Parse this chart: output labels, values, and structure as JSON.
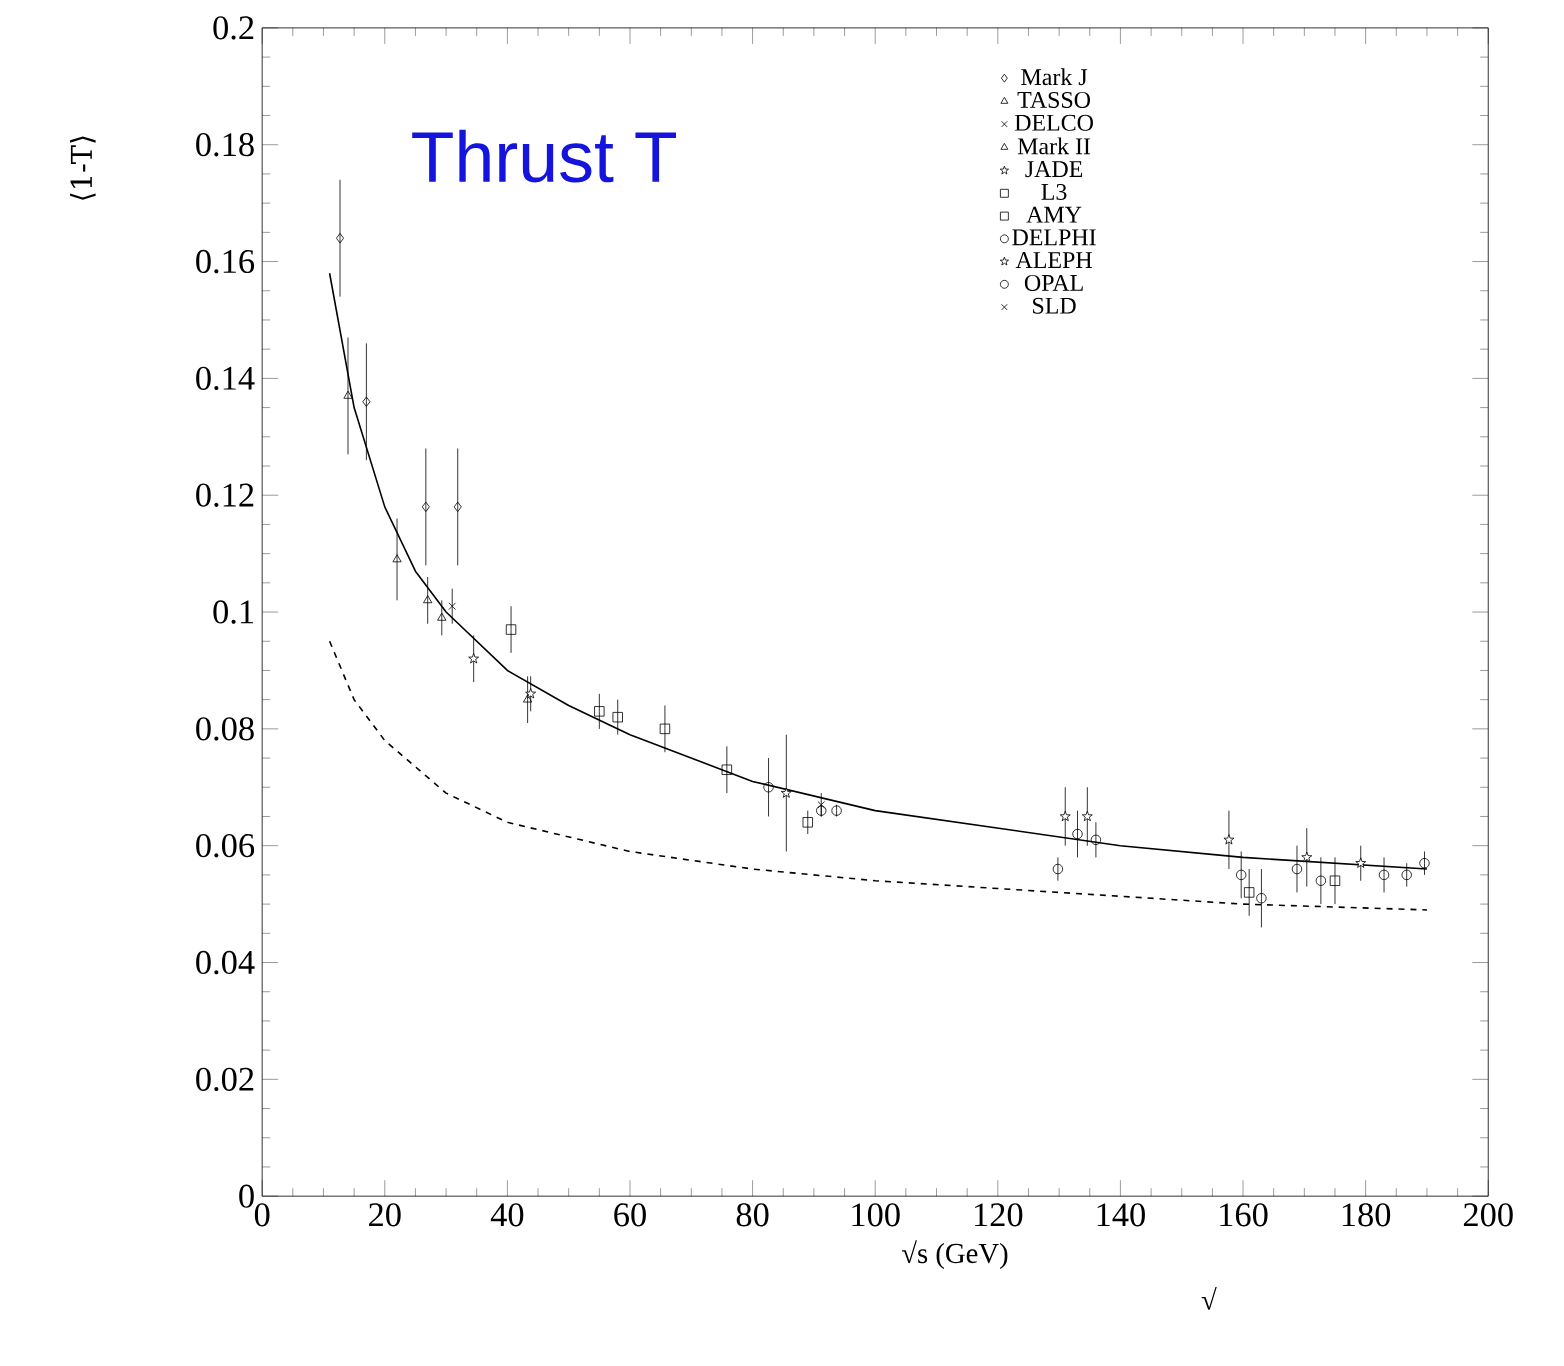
{
  "chart_data": {
    "type": "scatter",
    "title": "Thrust T",
    "xlabel": "√s (GeV)",
    "ylabel": "⟨1-T⟩",
    "annotations": [
      "√"
    ],
    "xlim": [
      0,
      200
    ],
    "ylim": [
      0,
      0.2
    ],
    "xticks": [
      0,
      20,
      40,
      60,
      80,
      100,
      120,
      140,
      160,
      180,
      200
    ],
    "yticks": [
      0,
      0.02,
      0.04,
      0.06,
      0.08,
      0.1,
      0.12,
      0.14,
      0.16,
      0.18,
      0.2
    ],
    "legend": "top right",
    "series": [
      {
        "name": "Mark J",
        "color": "#000000",
        "marker": "diamond",
        "x": [
          12.7,
          17,
          26.7,
          31.9
        ],
        "values": [
          0.164,
          0.136,
          0.118,
          0.118
        ],
        "errors": [
          0.01,
          0.01,
          0.01,
          0.01
        ]
      },
      {
        "name": "TASSO",
        "color": "#000000",
        "marker": "triangle",
        "x": [
          14,
          22,
          27,
          43.3
        ],
        "values": [
          0.137,
          0.109,
          0.102,
          0.085
        ],
        "errors": [
          0.01,
          0.007,
          0.004,
          0.004
        ]
      },
      {
        "name": "DELCO",
        "color": "#000000",
        "marker": "cross",
        "x": [
          31
        ],
        "values": [
          0.101
        ],
        "errors": [
          0.003
        ]
      },
      {
        "name": "Mark II",
        "color": "#000000",
        "marker": "triangle",
        "x": [
          29.3
        ],
        "values": [
          0.099
        ],
        "errors": [
          0.003
        ]
      },
      {
        "name": "JADE",
        "color": "#000000",
        "marker": "star",
        "x": [
          34.5,
          43.8
        ],
        "values": [
          0.092,
          0.086
        ],
        "errors": [
          0.004,
          0.003
        ]
      },
      {
        "name": "L3",
        "color": "#000000",
        "marker": "square",
        "x": [
          40.6,
          65.7,
          75.8,
          89,
          161,
          175
        ],
        "values": [
          0.097,
          0.08,
          0.073,
          0.064,
          0.052,
          0.054
        ],
        "errors": [
          0.004,
          0.004,
          0.004,
          0.002,
          0.004,
          0.004
        ]
      },
      {
        "name": "AMY",
        "color": "#000000",
        "marker": "square",
        "x": [
          55,
          58
        ],
        "values": [
          0.083,
          0.082
        ],
        "errors": [
          0.003,
          0.003
        ]
      },
      {
        "name": "DELPHI",
        "color": "#000000",
        "marker": "circle",
        "x": [
          82.6,
          129.8,
          133,
          159.7,
          163,
          172.7,
          183
        ],
        "values": [
          0.07,
          0.056,
          0.062,
          0.055,
          0.051,
          0.054,
          0.055
        ],
        "errors": [
          0.005,
          0.002,
          0.004,
          0.004,
          0.005,
          0.004,
          0.003
        ]
      },
      {
        "name": "ALEPH",
        "color": "#000000",
        "marker": "star",
        "x": [
          85.5,
          131,
          134.6,
          157.7,
          170.4,
          179.2
        ],
        "values": [
          0.069,
          0.065,
          0.065,
          0.061,
          0.058,
          0.057
        ],
        "errors": [
          0.01,
          0.005,
          0.005,
          0.005,
          0.005,
          0.003
        ]
      },
      {
        "name": "OPAL",
        "color": "#000000",
        "marker": "circle",
        "x": [
          91.2,
          93.7,
          136,
          168.8,
          186.7,
          189.6
        ],
        "values": [
          0.066,
          0.066,
          0.061,
          0.056,
          0.055,
          0.057
        ],
        "errors": [
          0.001,
          0.001,
          0.003,
          0.004,
          0.002,
          0.002
        ]
      },
      {
        "name": "SLD",
        "color": "#000000",
        "marker": "cross",
        "x": [
          91.2
        ],
        "values": [
          0.067
        ],
        "errors": [
          0.002
        ]
      },
      {
        "type": "line",
        "color": "#000000",
        "line_style": "solid",
        "x": [
          11,
          15,
          20,
          25,
          30,
          40,
          50,
          60,
          80,
          100,
          120,
          140,
          160,
          190
        ],
        "values": [
          0.158,
          0.135,
          0.118,
          0.107,
          0.1,
          0.09,
          0.084,
          0.079,
          0.071,
          0.066,
          0.063,
          0.06,
          0.058,
          0.056
        ]
      },
      {
        "type": "line",
        "color": "#000000",
        "line_style": "dashed",
        "x": [
          11,
          15,
          20,
          30,
          40,
          60,
          80,
          100,
          130,
          160,
          190
        ],
        "values": [
          0.095,
          0.085,
          0.078,
          0.069,
          0.064,
          0.059,
          0.056,
          0.054,
          0.052,
          0.05,
          0.049
        ]
      }
    ]
  }
}
